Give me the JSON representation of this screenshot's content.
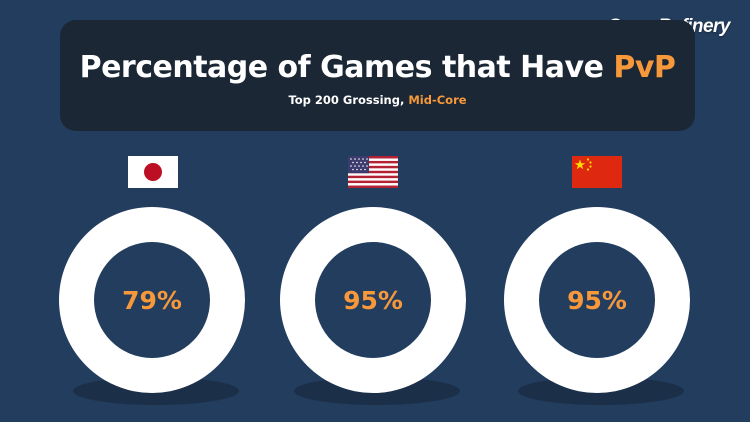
{
  "brand": "GameRefinery",
  "header": {
    "title_main": "Percentage of Games that Have ",
    "title_highlight": "PvP",
    "subtitle_main": "Top 200 Grossing, ",
    "subtitle_highlight": "Mid-Core"
  },
  "colors": {
    "background": "#233d5e",
    "title_box": "#1b2734",
    "accent": "#f7993b",
    "empty": "#ffffff"
  },
  "chart_data": {
    "type": "pie",
    "title": "Percentage of Games that Have PvP",
    "subtitle": "Top 200 Grossing, Mid-Core",
    "unit": "%",
    "series": [
      {
        "flag": "japan-flag",
        "value": 79,
        "label": "79%"
      },
      {
        "flag": "usa-flag",
        "value": 95,
        "label": "95%"
      },
      {
        "flag": "china-flag",
        "value": 95,
        "label": "95%"
      }
    ]
  }
}
